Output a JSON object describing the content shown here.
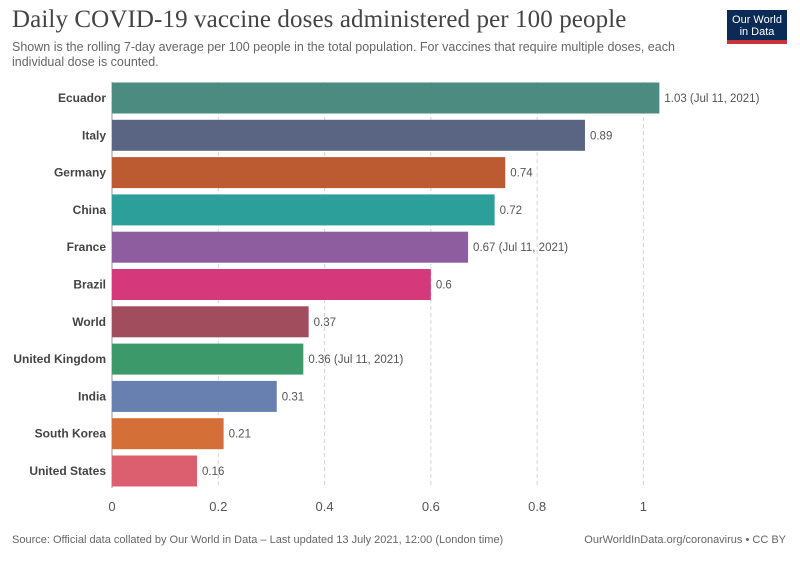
{
  "header": {
    "title": "Daily COVID-19 vaccine doses administered per 100 people",
    "subtitle": "Shown is the rolling 7-day average per 100 people in the total population. For vaccines that require multiple doses, each individual dose is counted."
  },
  "logo": {
    "line1": "Our World",
    "line2": "in Data"
  },
  "footer": {
    "source": "Source: Official data collated by Our World in Data – Last updated 13 July 2021, 12:00 (London time)",
    "credit": "OurWorldInData.org/coronavirus • CC BY"
  },
  "chart_data": {
    "type": "bar",
    "orientation": "horizontal",
    "categories": [
      "Ecuador",
      "Italy",
      "Germany",
      "China",
      "France",
      "Brazil",
      "World",
      "United Kingdom",
      "India",
      "South Korea",
      "United States"
    ],
    "values": [
      1.03,
      0.89,
      0.74,
      0.72,
      0.67,
      0.6,
      0.37,
      0.36,
      0.31,
      0.21,
      0.16
    ],
    "value_labels": [
      "1.03 (Jul 11, 2021)",
      "0.89",
      "0.74",
      "0.72",
      "0.67 (Jul 11, 2021)",
      "0.6",
      "0.37",
      "0.36 (Jul 11, 2021)",
      "0.31",
      "0.21",
      "0.16"
    ],
    "colors": [
      "#4c8c80",
      "#596582",
      "#bc5a31",
      "#2d9f9a",
      "#8d5da0",
      "#d6387c",
      "#a14d5d",
      "#3c9a6a",
      "#6780b0",
      "#d36f37",
      "#dc5f70"
    ],
    "xlim": [
      0,
      1.05
    ],
    "xticks": [
      0,
      0.2,
      0.4,
      0.6,
      0.8,
      1
    ],
    "xtick_labels": [
      "0",
      "0.2",
      "0.4",
      "0.6",
      "0.8",
      "1"
    ],
    "grid": "vertical dashed"
  }
}
